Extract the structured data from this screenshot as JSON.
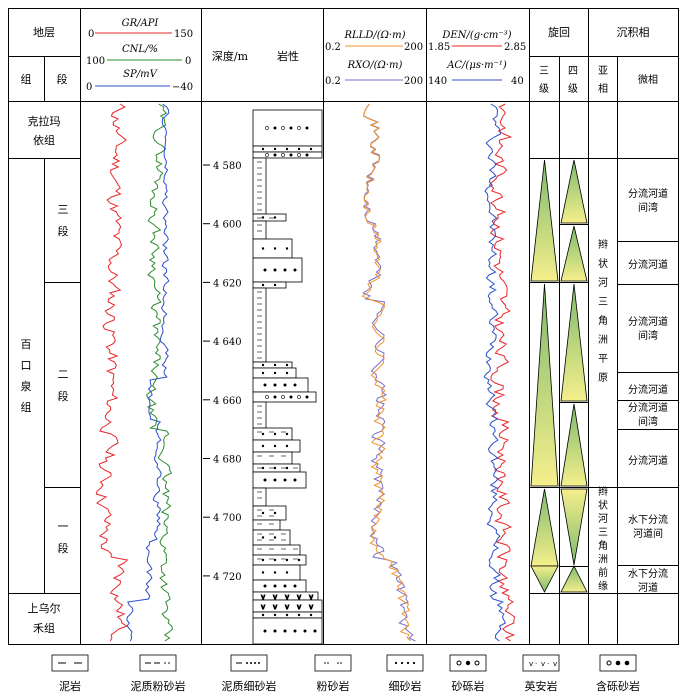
{
  "header": {
    "stratum": "地层",
    "group": "组",
    "section": "段",
    "depth_label": "深度/m",
    "lithology": "岩性",
    "cycle": "旋回",
    "cycle_3": "三级",
    "cycle_4": "四级",
    "facies": "沉积相",
    "subfacies": "亚相",
    "microfacies": "微相"
  },
  "curves_left": {
    "gr": {
      "label": "GR/API",
      "min": "0",
      "max": "150",
      "color": "#e8262a"
    },
    "cnl": {
      "label": "CNL/%",
      "min": "100",
      "max": "0",
      "color": "#2e8b2e"
    },
    "sp": {
      "label": "SP/mV",
      "min": "0",
      "max": "−40",
      "color": "#2b50c8"
    }
  },
  "curves_res": {
    "rlld": {
      "label": "RLLD/(Ω·m)",
      "min": "0.2",
      "max": "200",
      "color": "#f0922b"
    },
    "rxo": {
      "label": "RXO/(Ω·m)",
      "min": "0.2",
      "max": "200",
      "color": "#7b6fc9"
    }
  },
  "curves_den": {
    "den": {
      "label": "DEN/(g·cm⁻³)",
      "min": "1.85",
      "max": "2.85",
      "color": "#e8262a"
    },
    "ac": {
      "label": "AC/(μs·m⁻¹)",
      "min": "140",
      "max": "40",
      "color": "#2b50c8"
    }
  },
  "formations": [
    "克拉玛依组",
    "百口泉组",
    "上乌尔禾组"
  ],
  "members": [
    "三段",
    "二段",
    "一段"
  ],
  "depth_ticks": [
    "4 580",
    "4 600",
    "4 620",
    "4 640",
    "4 660",
    "4 680",
    "4 700",
    "4 720"
  ],
  "subfacies": [
    "辫状河三角洲平原",
    "辫状河三角洲前缘"
  ],
  "microfacies": [
    "分流河道间湾",
    "分流河道",
    "分流河道间湾",
    "分流河道",
    "分流河道间湾",
    "分流河道",
    "水下分流河道间",
    "水下分流河道"
  ],
  "legend": [
    "泥岩",
    "泥质粉砂岩",
    "泥质细砂岩",
    "粉砂岩",
    "细砂岩",
    "砂砾岩",
    "英安岩",
    "含砾砂岩"
  ],
  "colors": {
    "triangle_fill": "#f5ef8c",
    "triangle_green": "#7dba6e",
    "line": "#000000"
  }
}
